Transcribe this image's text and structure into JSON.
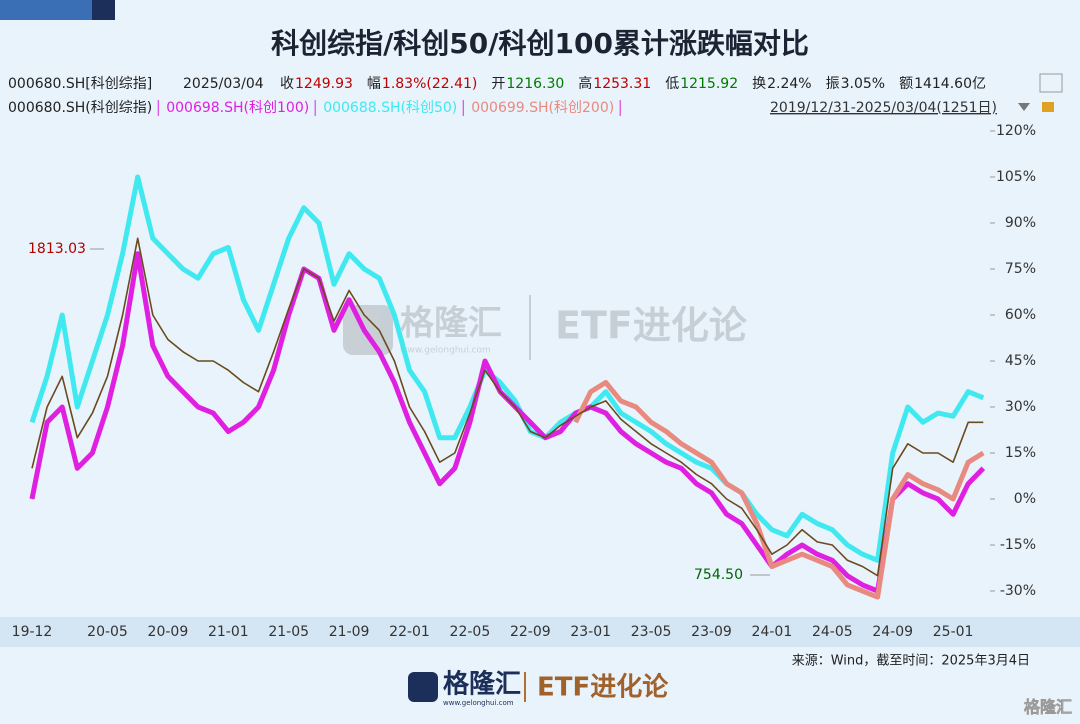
{
  "chart_data": {
    "type": "line",
    "title": "科创综指/科创50/科创100累计涨跌幅对比",
    "code": "000680.SH[科创综指]",
    "date": "2025/03/04",
    "info": [
      {
        "label": "收",
        "value": "1249.93",
        "color": "#c00000"
      },
      {
        "label": "幅",
        "value": "1.83%(22.41)",
        "color": "#c00000"
      },
      {
        "label": "开",
        "value": "1216.30",
        "color": "#007a00"
      },
      {
        "label": "高",
        "value": "1253.31",
        "color": "#c00000"
      },
      {
        "label": "低",
        "value": "1215.92",
        "color": "#007a00"
      },
      {
        "label": "换",
        "value": "2.24%",
        "color": "#222222"
      },
      {
        "label": "振",
        "value": "3.05%",
        "color": "#222222"
      },
      {
        "label": "额",
        "value": "1414.60亿",
        "color": "#222222"
      }
    ],
    "range": "2019/12/31-2025/03/04(1251日)",
    "x": [
      "19-12",
      "20-01",
      "20-02",
      "20-03",
      "20-04",
      "20-05",
      "20-06",
      "20-07",
      "20-08",
      "20-09",
      "20-10",
      "20-11",
      "20-12",
      "21-01",
      "21-02",
      "21-03",
      "21-04",
      "21-05",
      "21-06",
      "21-07",
      "21-08",
      "21-09",
      "21-10",
      "21-11",
      "21-12",
      "22-01",
      "22-02",
      "22-03",
      "22-04",
      "22-05",
      "22-06",
      "22-07",
      "22-08",
      "22-09",
      "22-10",
      "22-11",
      "22-12",
      "23-01",
      "23-02",
      "23-03",
      "23-04",
      "23-05",
      "23-06",
      "23-07",
      "23-08",
      "23-09",
      "23-10",
      "23-11",
      "23-12",
      "24-01",
      "24-02",
      "24-03",
      "24-04",
      "24-05",
      "24-06",
      "24-07",
      "24-08",
      "24-09",
      "24-10",
      "24-11",
      "24-12",
      "25-01",
      "25-02",
      "25-03"
    ],
    "xticks": [
      "19-12",
      "20-05",
      "20-09",
      "21-01",
      "21-05",
      "21-09",
      "22-01",
      "22-05",
      "22-09",
      "23-01",
      "23-05",
      "23-09",
      "24-01",
      "24-05",
      "24-09",
      "25-01"
    ],
    "ylim": [
      -36,
      124
    ],
    "yticks": [
      {
        "value": 120,
        "label": "120%"
      },
      {
        "value": 105,
        "label": "105%"
      },
      {
        "value": 90,
        "label": "90%"
      },
      {
        "value": 75,
        "label": "75%"
      },
      {
        "value": 60,
        "label": "60%"
      },
      {
        "value": 45,
        "label": "45%"
      },
      {
        "value": 30,
        "label": "30%"
      },
      {
        "value": 15,
        "label": "15%"
      },
      {
        "value": 0,
        "label": "0%"
      },
      {
        "value": -15,
        "label": "-15%"
      },
      {
        "value": -30,
        "label": "-30%"
      }
    ],
    "series": [
      {
        "name": "000680.SH(科创综指)",
        "color": "#6b4a1e",
        "values": [
          10,
          30,
          40,
          20,
          28,
          40,
          60,
          85,
          60,
          52,
          48,
          45,
          45,
          42,
          38,
          35,
          48,
          62,
          75,
          72,
          58,
          68,
          60,
          55,
          45,
          30,
          22,
          12,
          15,
          28,
          42,
          35,
          30,
          22,
          20,
          24,
          27,
          30,
          32,
          26,
          22,
          18,
          15,
          12,
          8,
          5,
          0,
          -3,
          -10,
          -18,
          -15,
          -10,
          -14,
          -15,
          -20,
          -22,
          -25,
          10,
          18,
          15,
          15,
          12,
          25,
          25
        ]
      },
      {
        "name": "000698.SH(科创100)",
        "color": "#e020e0",
        "values": [
          0,
          25,
          30,
          10,
          15,
          30,
          50,
          80,
          50,
          40,
          35,
          30,
          28,
          22,
          25,
          30,
          42,
          60,
          75,
          72,
          55,
          65,
          55,
          48,
          38,
          25,
          15,
          5,
          10,
          25,
          45,
          35,
          30,
          25,
          20,
          22,
          28,
          30,
          28,
          22,
          18,
          15,
          12,
          10,
          5,
          2,
          -5,
          -8,
          -15,
          -22,
          -18,
          -15,
          -18,
          -20,
          -25,
          -28,
          -30,
          0,
          5,
          2,
          0,
          -5,
          5,
          10
        ]
      },
      {
        "name": "000688.SH(科创50)",
        "color": "#40e8f0",
        "values": [
          25,
          40,
          60,
          30,
          45,
          60,
          80,
          105,
          85,
          80,
          75,
          72,
          80,
          82,
          65,
          55,
          70,
          85,
          95,
          90,
          70,
          80,
          75,
          72,
          60,
          42,
          35,
          20,
          20,
          30,
          42,
          38,
          32,
          22,
          20,
          25,
          28,
          30,
          35,
          28,
          25,
          22,
          18,
          15,
          12,
          10,
          5,
          2,
          -5,
          -10,
          -12,
          -5,
          -8,
          -10,
          -15,
          -18,
          -20,
          15,
          30,
          25,
          28,
          27,
          35,
          33
        ]
      },
      {
        "name": "000699.SH(科创200)",
        "color": "#e88a80",
        "values": [
          null,
          null,
          null,
          null,
          null,
          null,
          null,
          null,
          null,
          null,
          null,
          null,
          null,
          null,
          null,
          null,
          null,
          null,
          null,
          null,
          null,
          null,
          null,
          null,
          null,
          null,
          null,
          null,
          null,
          null,
          null,
          null,
          null,
          null,
          null,
          null,
          25,
          35,
          38,
          32,
          30,
          25,
          22,
          18,
          15,
          12,
          5,
          2,
          -8,
          -22,
          -20,
          -18,
          -20,
          -22,
          -28,
          -30,
          -32,
          0,
          8,
          5,
          3,
          0,
          12,
          15
        ]
      }
    ],
    "annotations": [
      "1813.03",
      "754.50"
    ],
    "source": "来源：Wind，截至时间：2025年3月4日",
    "brand": "格隆汇",
    "brand_url": "www.gelonghui.com",
    "column": "ETF进化论"
  }
}
